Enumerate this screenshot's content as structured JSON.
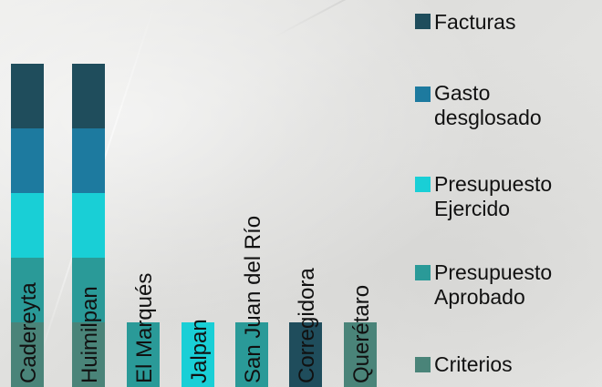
{
  "chart_data": {
    "type": "bar",
    "stacked": true,
    "categories": [
      "Cadereyta",
      "Huimilpan",
      "El Marqués",
      "Jalpan",
      "San Juan del Río",
      "Corregidora",
      "Querétaro"
    ],
    "series": [
      {
        "name": "Criterios",
        "color": "#4a8479",
        "values": [
          1,
          1,
          0,
          0,
          0,
          0,
          1
        ]
      },
      {
        "name": "Presupuesto Aprobado",
        "color": "#2a9a98",
        "values": [
          1,
          1,
          1,
          0,
          1,
          0,
          0
        ]
      },
      {
        "name": "Presupuesto Ejercido",
        "color": "#19cfd6",
        "values": [
          1,
          1,
          0,
          1,
          0,
          0,
          0
        ]
      },
      {
        "name": "Gasto desglosado",
        "color": "#1d7a9f",
        "values": [
          1,
          1,
          0,
          0,
          0,
          0,
          0
        ]
      },
      {
        "name": "Facturas",
        "color": "#1f4d5c",
        "values": [
          1,
          1,
          0,
          0,
          0,
          1,
          0
        ]
      }
    ],
    "ylim": [
      0,
      5
    ],
    "title": "",
    "xlabel": "",
    "ylabel": "",
    "grid": false,
    "legend_position": "right"
  },
  "legend": {
    "facturas": "Facturas",
    "gasto": "Gasto\ndesglosado",
    "ejercido": "Presupuesto\nEjercido",
    "aprobado": "Presupuesto\nAprobado",
    "criterios": "Criterios"
  }
}
